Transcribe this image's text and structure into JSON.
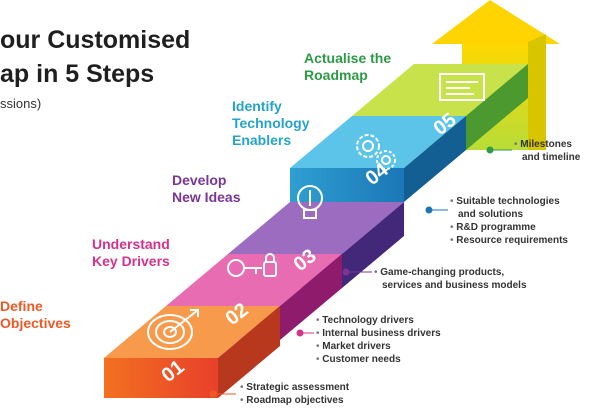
{
  "header": {
    "title_line1": "our Customised",
    "title_line2": "ap in 5 Steps",
    "subtitle": "ssions)"
  },
  "steps": [
    {
      "number": "01",
      "label_line1": "Define",
      "label_line2": "Objectives",
      "color": "#ee5a24",
      "icon": "target-icon",
      "bullets": [
        "Strategic assessment",
        "Roadmap objectives"
      ]
    },
    {
      "number": "02",
      "label_line1": "Understand",
      "label_line2": "Key Drivers",
      "color": "#d6328c",
      "icon": "key-lock-icon",
      "bullets": [
        "Technology drivers",
        "Internal business drivers",
        "Market drivers",
        "Customer needs"
      ]
    },
    {
      "number": "03",
      "label_line1": "Develop",
      "label_line2": "New Ideas",
      "color": "#7b3594",
      "icon": "lightbulb-icon",
      "bullets": [
        "Game-changing products,",
        "services and business models"
      ]
    },
    {
      "number": "04",
      "label_line1": "Identify",
      "label_line2": "Technology",
      "label_line3": "Enablers",
      "color": "#26a3c9",
      "icon": "gears-icon",
      "bullets": [
        "Suitable technologies",
        "and solutions",
        "R&D programme",
        "Resource requirements"
      ]
    },
    {
      "number": "05",
      "label_line1": "Actualise the",
      "label_line2": "Roadmap",
      "color": "#2e9a46",
      "icon": "roadmap-board-icon",
      "bullets": [
        "Milestones",
        "and timeline"
      ]
    }
  ]
}
